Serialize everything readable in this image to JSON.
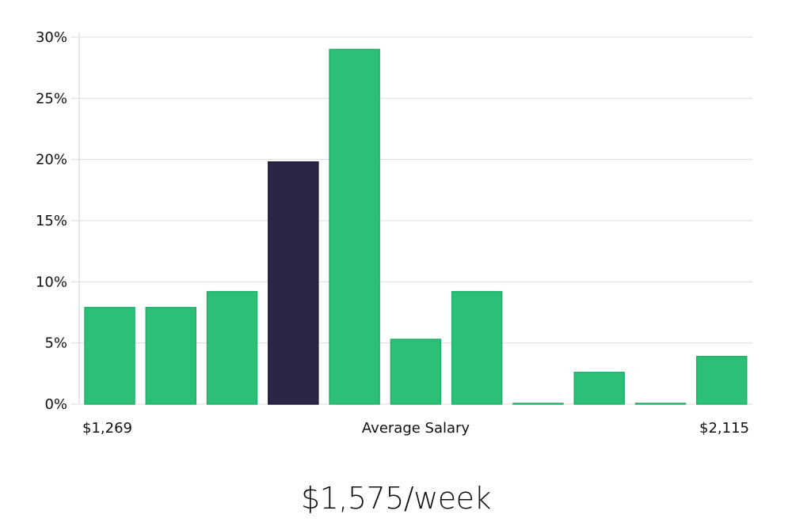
{
  "chart_data": {
    "type": "bar",
    "title": "",
    "xlabel": "Average Salary",
    "ylabel": "",
    "x_tick_labels": {
      "min": "$1,269",
      "max": "$2,115"
    },
    "ylim": [
      0,
      30
    ],
    "yticks": [
      "0%",
      "5%",
      "10%",
      "15%",
      "20%",
      "25%",
      "30%"
    ],
    "grid": true,
    "values": [
      7.9,
      7.9,
      9.2,
      19.8,
      29.0,
      5.3,
      9.2,
      0,
      2.6,
      0,
      3.9
    ],
    "highlight_index": 3,
    "colors": {
      "bar": "#2bbf78",
      "bar_edge": "#22b06c",
      "highlight": "#2a2746",
      "grid": "#dcdcdc"
    }
  },
  "summary": {
    "salary_label": "$1,575/week"
  }
}
